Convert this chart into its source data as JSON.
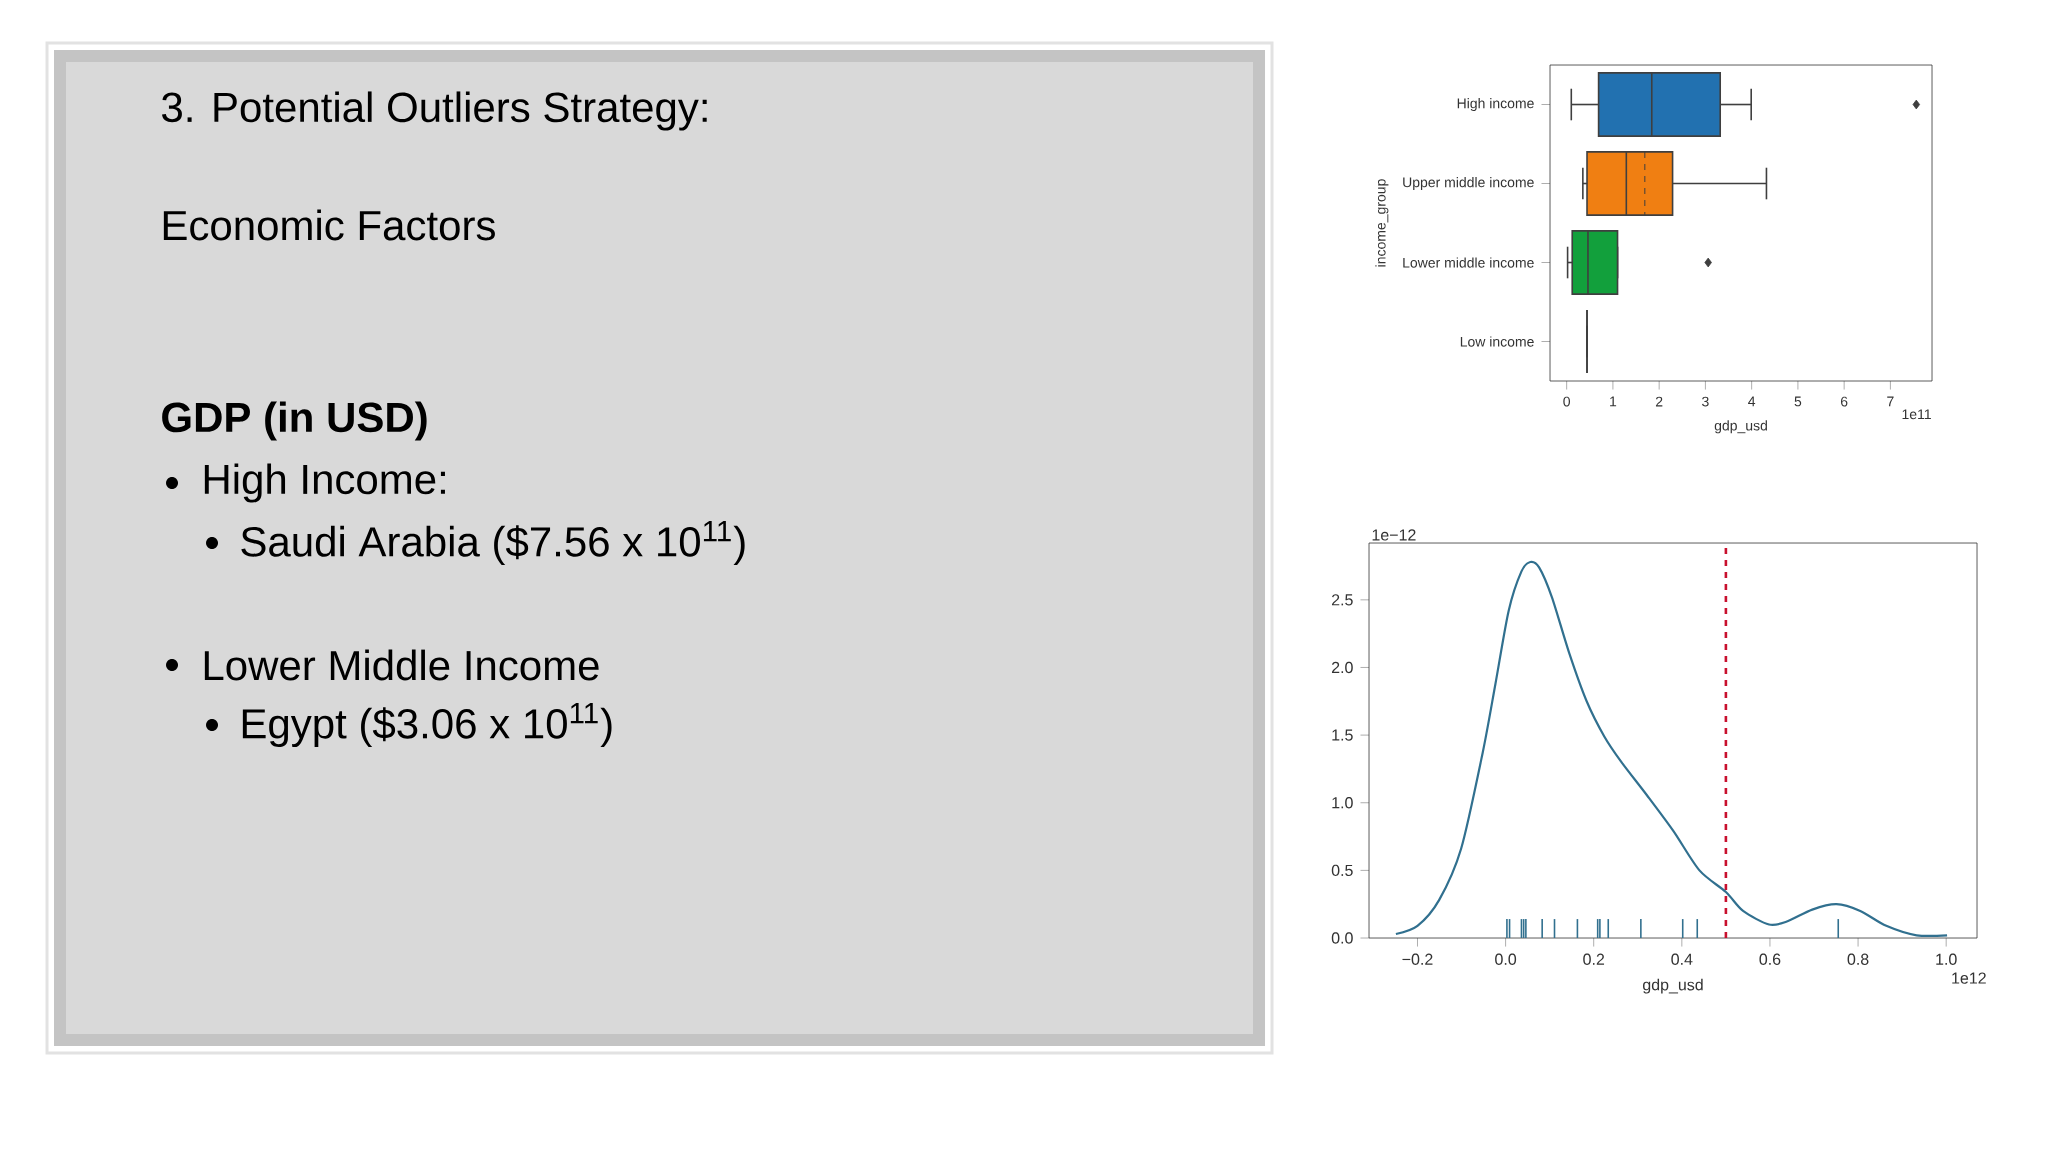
{
  "chart_data": [
    {
      "type": "other",
      "title": "3. Potential Outliers Strategy:",
      "subtitle": "Economic Factors",
      "annotations": [
        "GDP (in USD)",
        "High Income:",
        "Saudi Arabia ($7.56 x 10$^{11}$)",
        "Lower Middle Income",
        "Egypt ($3.06 x 10$^{11}$)"
      ]
    },
    {
      "type": "box",
      "orientation": "horizontal",
      "categories": [
        "High income",
        "Upper middle income",
        "Lower middle income",
        "Low income"
      ],
      "colors": [
        "#2271b0",
        "#f07f12",
        "#12a03c",
        "#444444"
      ],
      "boxes": [
        {
          "low": 0.1,
          "q1": 0.69,
          "median": 1.84,
          "q3": 3.32,
          "high": 3.99,
          "outliers": [
            7.56
          ]
        },
        {
          "low": 0.35,
          "q1": 0.44,
          "median": 1.29,
          "q3": 2.29,
          "high": 4.32,
          "mean": 1.69
        },
        {
          "low": 0.02,
          "q1": 0.12,
          "median": 0.46,
          "q3": 1.1,
          "high": 1.1,
          "outliers": [
            3.06
          ]
        },
        {
          "low": 0.44,
          "q1": 0.44,
          "median": 0.44,
          "q3": 0.44,
          "high": 0.44
        }
      ],
      "xlim": [
        -0.36,
        7.9
      ],
      "xticks": [
        0,
        1,
        2,
        3,
        4,
        5,
        6,
        7
      ],
      "xlabel": "gdp_usd",
      "ylabel": "income_group",
      "annotations": [
        "1e11"
      ]
    },
    {
      "type": "line",
      "xlim": [
        -0.31,
        1.07
      ],
      "ylim": [
        0,
        2.92
      ],
      "xticks": [
        {
          "value": -0.2,
          "label": "−0.2"
        },
        {
          "value": 0,
          "label": "0.0"
        },
        {
          "value": 0.2,
          "label": "0.2"
        },
        {
          "value": 0.4,
          "label": "0.4"
        },
        {
          "value": 0.6,
          "label": "0.6"
        },
        {
          "value": 0.8,
          "label": "0.8"
        },
        {
          "value": 1,
          "label": "1.0"
        }
      ],
      "yticks": [
        {
          "value": 0,
          "label": "0.0"
        },
        {
          "value": 0.5,
          "label": "0.5"
        },
        {
          "value": 1,
          "label": "1.0"
        },
        {
          "value": 1.5,
          "label": "1.5"
        },
        {
          "value": 2,
          "label": "2.0"
        },
        {
          "value": 2.5,
          "label": "2.5"
        }
      ],
      "xlabel": "gdp_usd",
      "annotations": [
        "1e−12",
        "1e12"
      ],
      "ref_lines": [
        {
          "axis": "x",
          "value": 0.5,
          "color": "#c8102e",
          "line_style": "dashed"
        }
      ],
      "series": [
        {
          "type": "line",
          "color": "#31708f",
          "x": [
            -0.249,
            -0.2,
            -0.151,
            -0.101,
            -0.052,
            -0.023,
            0.007,
            0.036,
            0.056,
            0.076,
            0.105,
            0.145,
            0.184,
            0.224,
            0.263,
            0.322,
            0.381,
            0.44,
            0.5,
            0.539,
            0.598,
            0.637,
            0.696,
            0.751,
            0.805,
            0.864,
            0.933,
            1.002
          ],
          "values": [
            0.03,
            0.09,
            0.28,
            0.66,
            1.37,
            1.88,
            2.42,
            2.71,
            2.78,
            2.74,
            2.52,
            2.1,
            1.75,
            1.49,
            1.3,
            1.05,
            0.79,
            0.5,
            0.34,
            0.2,
            0.1,
            0.12,
            0.21,
            0.25,
            0.2,
            0.09,
            0.02,
            0.02
          ]
        },
        {
          "type": "bar",
          "color": "#31708f",
          "x": [
            0.003,
            0.009,
            0.036,
            0.041,
            0.046,
            0.083,
            0.111,
            0.163,
            0.209,
            0.214,
            0.233,
            0.307,
            0.402,
            0.435,
            0.755
          ],
          "values": [
            0.14,
            0.14,
            0.14,
            0.14,
            0.14,
            0.14,
            0.14,
            0.14,
            0.14,
            0.14,
            0.14,
            0.14,
            0.14,
            0.14,
            0.14
          ]
        }
      ]
    }
  ]
}
